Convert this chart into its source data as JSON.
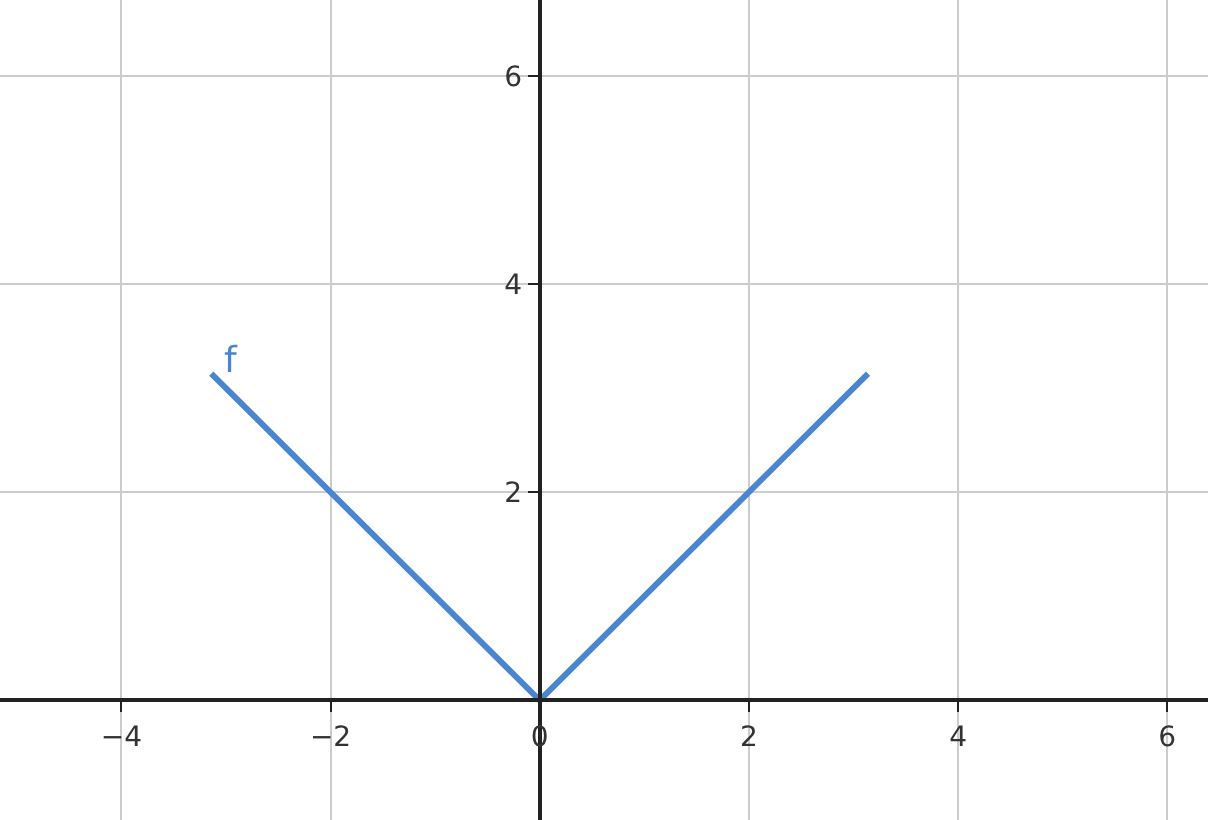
{
  "chart_data": {
    "type": "line",
    "x": [
      -3.14,
      0,
      3.14
    ],
    "series": [
      {
        "name": "f",
        "color": "#4a86d0",
        "values": [
          3.14,
          0,
          3.14
        ]
      }
    ],
    "xlim": [
      -5.16,
      6.39
    ],
    "ylim": [
      -1.15,
      6.73
    ],
    "xticks": [
      -4,
      -2,
      0,
      2,
      4,
      6
    ],
    "yticks": [
      2,
      4,
      6
    ],
    "grid": true,
    "legend": false,
    "marker": "none",
    "line_style": "solid"
  }
}
